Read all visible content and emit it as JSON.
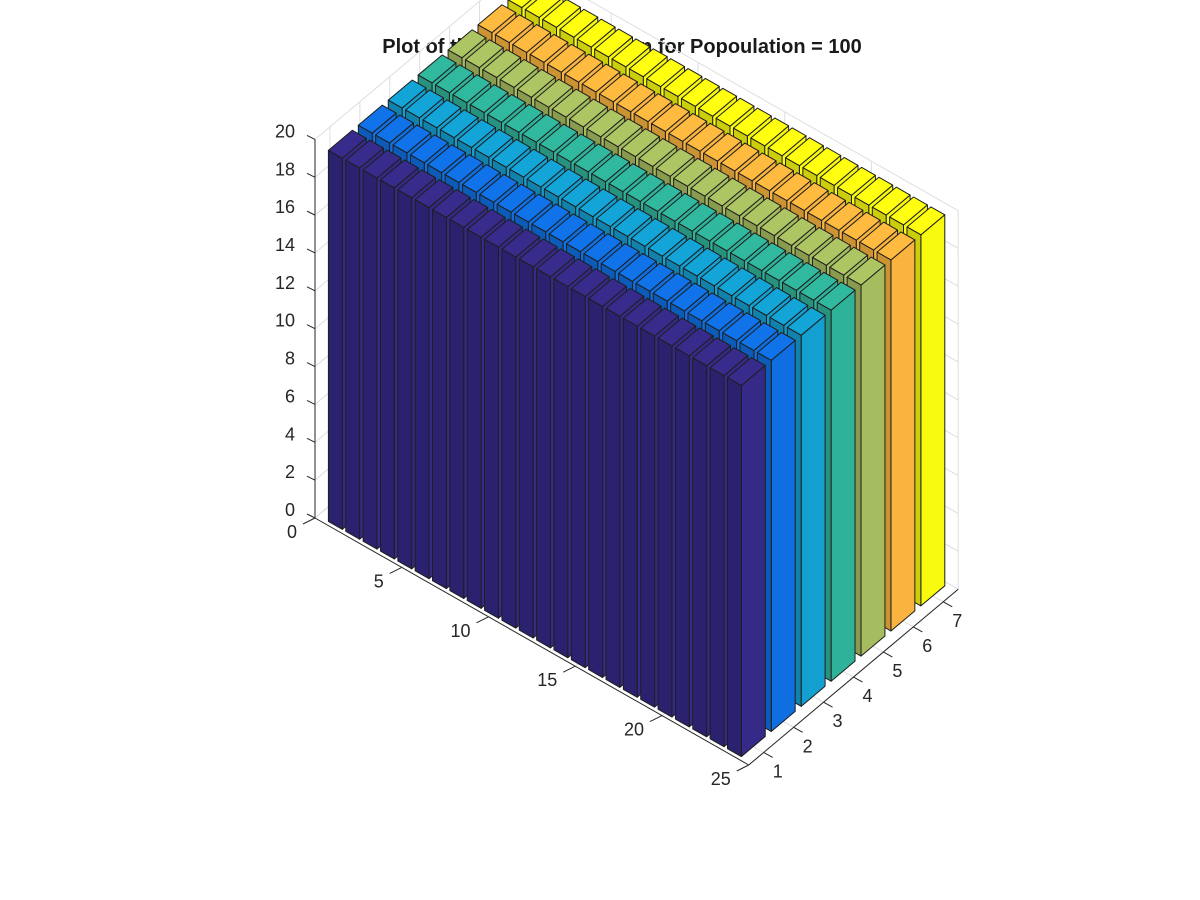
{
  "chart_data": {
    "type": "bar3",
    "title": "Plot of the sum of x1,x2...,xn for Popoulation = 100",
    "xlabel": "",
    "ylabel": "",
    "zlabel": "",
    "row_axis": {
      "ticks": [
        0,
        5,
        10,
        15,
        20,
        25
      ],
      "range": [
        0,
        25
      ]
    },
    "column_axis": {
      "ticks": [
        1,
        2,
        3,
        4,
        5,
        6,
        7
      ],
      "range": [
        0.5,
        7.5
      ]
    },
    "z_axis": {
      "ticks": [
        0,
        2,
        4,
        6,
        8,
        10,
        12,
        14,
        16,
        18,
        20
      ],
      "range": [
        0,
        20
      ]
    },
    "rows": [
      1,
      2,
      3,
      4,
      5,
      6,
      7,
      8,
      9,
      10,
      11,
      12,
      13,
      14,
      15,
      16,
      17,
      18,
      19,
      20,
      21,
      22,
      23,
      24
    ],
    "columns": [
      1,
      2,
      3,
      4,
      5,
      6,
      7
    ],
    "column_colors": [
      "#352a87",
      "#0f6fe0",
      "#139fd0",
      "#2fb29a",
      "#a6bd5f",
      "#f9b33e",
      "#f9fb0e"
    ],
    "values": [
      [
        19.6,
        19.6,
        19.6,
        19.6,
        19.6,
        19.6,
        19.6
      ],
      [
        19.6,
        19.6,
        19.6,
        19.6,
        19.6,
        19.6,
        19.6
      ],
      [
        19.6,
        19.6,
        19.6,
        19.6,
        19.6,
        19.6,
        19.6
      ],
      [
        19.6,
        19.6,
        19.6,
        19.6,
        19.6,
        19.6,
        19.6
      ],
      [
        19.6,
        19.6,
        19.6,
        19.6,
        19.6,
        19.6,
        19.6
      ],
      [
        19.6,
        19.6,
        19.6,
        19.6,
        19.6,
        19.6,
        19.6
      ],
      [
        19.6,
        19.6,
        19.6,
        19.6,
        19.6,
        19.6,
        19.6
      ],
      [
        19.6,
        19.6,
        19.6,
        19.6,
        19.6,
        19.6,
        19.6
      ],
      [
        19.6,
        19.6,
        19.6,
        19.6,
        19.6,
        19.6,
        19.6
      ],
      [
        19.6,
        19.6,
        19.6,
        19.6,
        19.6,
        19.6,
        19.6
      ],
      [
        19.6,
        19.6,
        19.6,
        19.6,
        19.6,
        19.6,
        19.6
      ],
      [
        19.6,
        19.6,
        19.6,
        19.6,
        19.6,
        19.6,
        19.6
      ],
      [
        19.6,
        19.6,
        19.6,
        19.6,
        19.6,
        19.6,
        19.6
      ],
      [
        19.6,
        19.6,
        19.6,
        19.6,
        19.6,
        19.6,
        19.6
      ],
      [
        19.6,
        19.6,
        19.6,
        19.6,
        19.6,
        19.6,
        19.6
      ],
      [
        19.6,
        19.6,
        19.6,
        19.6,
        19.6,
        19.6,
        19.6
      ],
      [
        19.6,
        19.6,
        19.6,
        19.6,
        19.6,
        19.6,
        19.6
      ],
      [
        19.6,
        19.6,
        19.6,
        19.6,
        19.6,
        19.6,
        19.6
      ],
      [
        19.6,
        19.6,
        19.6,
        19.6,
        19.6,
        19.6,
        19.6
      ],
      [
        19.6,
        19.6,
        19.6,
        19.6,
        19.6,
        19.6,
        19.6
      ],
      [
        19.6,
        19.6,
        19.6,
        19.6,
        19.6,
        19.6,
        19.6
      ],
      [
        19.6,
        19.6,
        19.6,
        19.6,
        19.6,
        19.6,
        19.6
      ],
      [
        19.6,
        19.6,
        19.6,
        19.6,
        19.6,
        19.6,
        19.6
      ],
      [
        19.6,
        19.6,
        19.6,
        19.6,
        19.6,
        19.6,
        19.6
      ]
    ],
    "grid": true,
    "legend": "none"
  }
}
